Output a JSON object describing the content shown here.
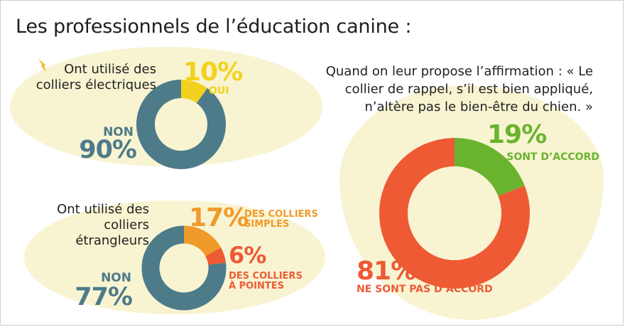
{
  "title": "Les professionnels de l’éducation canine :",
  "colors": {
    "yellow": "#f2d21f",
    "teal": "#4d7b8a",
    "orange": "#f09a2a",
    "red": "#ee5a34",
    "green": "#6ab32e",
    "blob": "#f8f4d2"
  },
  "icons": {
    "bolt": "lightning-bolt-icon"
  },
  "chart_data": [
    {
      "type": "pie",
      "title": "Ont utilisé des colliers électriques",
      "slices": [
        {
          "pct_label": "10%",
          "caption": "OUI",
          "value": 10,
          "color": "#f2d21f"
        },
        {
          "pct_label": "90%",
          "caption": "NON",
          "value": 90,
          "color": "#4d7b8a"
        }
      ]
    },
    {
      "type": "pie",
      "title": "Ont utilisé des colliers étrangleurs",
      "slices": [
        {
          "pct_label": "17%",
          "caption": "DES COLLIERS SIMPLES",
          "value": 17,
          "color": "#f09a2a"
        },
        {
          "pct_label": "6%",
          "caption": "DES COLLIERS À POINTES",
          "value": 6,
          "color": "#ee5a34"
        },
        {
          "pct_label": "77%",
          "caption": "NON",
          "value": 77,
          "color": "#4d7b8a"
        }
      ]
    },
    {
      "type": "pie",
      "title": "Quand on leur propose l’affirmation : « Le collier de rappel, s’il est bien appliqué, n’altère pas le bien-être du chien. »",
      "slices": [
        {
          "pct_label": "19%",
          "caption": "SONT D’ACCORD",
          "value": 19,
          "color": "#6ab32e"
        },
        {
          "pct_label": "81%",
          "caption": "NE SONT PAS D’ACCORD",
          "value": 81,
          "color": "#ee5a34"
        }
      ]
    }
  ]
}
